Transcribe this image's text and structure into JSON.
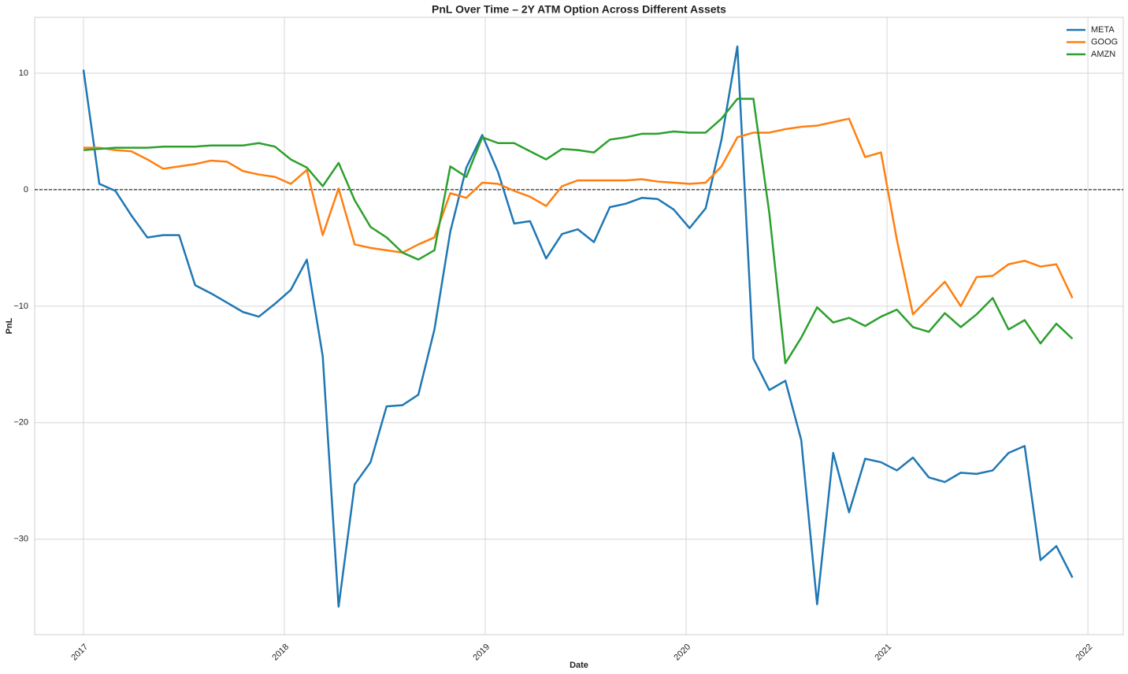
{
  "chart_data": {
    "type": "line",
    "title": "PnL Over Time – 2Y ATM Option Across Different Assets",
    "xlabel": "Date",
    "ylabel": "PnL",
    "x": [
      2017.0,
      2017.079,
      2017.159,
      2017.238,
      2017.318,
      2017.397,
      2017.476,
      2017.556,
      2017.635,
      2017.715,
      2017.794,
      2017.873,
      2017.953,
      2018.032,
      2018.112,
      2018.191,
      2018.27,
      2018.35,
      2018.429,
      2018.509,
      2018.588,
      2018.667,
      2018.747,
      2018.826,
      2018.906,
      2018.985,
      2019.064,
      2019.144,
      2019.223,
      2019.303,
      2019.382,
      2019.461,
      2019.541,
      2019.62,
      2019.7,
      2019.779,
      2019.858,
      2019.938,
      2020.017,
      2020.097,
      2020.176,
      2020.255,
      2020.335,
      2020.414,
      2020.494,
      2020.573,
      2020.652,
      2020.732,
      2020.811,
      2020.891,
      2020.97,
      2021.049,
      2021.129,
      2021.208,
      2021.288,
      2021.367,
      2021.446,
      2021.526,
      2021.605,
      2021.685,
      2021.764,
      2021.843,
      2021.923
    ],
    "series": [
      {
        "name": "META",
        "color": "#1f77b4",
        "values": [
          10.3,
          0.5,
          -0.1,
          -2.2,
          -4.1,
          -3.9,
          -3.9,
          -8.2,
          -8.9,
          -9.7,
          -10.5,
          -10.9,
          -9.8,
          -8.6,
          -6.0,
          -14.3,
          -35.8,
          -25.3,
          -23.4,
          -18.6,
          -18.5,
          -17.6,
          -12.0,
          -3.6,
          1.9,
          4.7,
          1.5,
          -2.9,
          -2.7,
          -5.9,
          -3.8,
          -3.4,
          -4.5,
          -1.5,
          -1.2,
          -0.7,
          -0.8,
          -1.7,
          -3.3,
          -1.6,
          4.3,
          12.3,
          -14.5,
          -17.2,
          -16.4,
          -21.5,
          -35.6,
          -22.6,
          -27.7,
          -23.1,
          -23.4,
          -24.1,
          -23.0,
          -24.7,
          -25.1,
          -24.3,
          -24.4,
          -24.1,
          -22.6,
          -22.0,
          -31.8,
          -30.6,
          -33.3
        ]
      },
      {
        "name": "GOOG",
        "color": "#ff7f0e",
        "values": [
          3.6,
          3.6,
          3.4,
          3.3,
          2.6,
          1.8,
          2.0,
          2.2,
          2.5,
          2.4,
          1.6,
          1.3,
          1.1,
          0.5,
          1.7,
          -3.9,
          0.1,
          -4.7,
          -5.0,
          -5.2,
          -5.4,
          -4.7,
          -4.1,
          -0.3,
          -0.7,
          0.6,
          0.5,
          -0.1,
          -0.6,
          -1.4,
          0.3,
          0.8,
          0.8,
          0.8,
          0.8,
          0.9,
          0.7,
          0.6,
          0.5,
          0.6,
          2.0,
          4.5,
          4.9,
          4.9,
          5.2,
          5.4,
          5.5,
          5.8,
          6.1,
          2.8,
          3.2,
          -4.3,
          -10.7,
          -9.3,
          -7.9,
          -10.0,
          -7.5,
          -7.4,
          -6.4,
          -6.1,
          -6.6,
          -6.4,
          -9.3
        ]
      },
      {
        "name": "AMZN",
        "color": "#2ca02c",
        "values": [
          3.4,
          3.5,
          3.6,
          3.6,
          3.6,
          3.7,
          3.7,
          3.7,
          3.8,
          3.8,
          3.8,
          4.0,
          3.7,
          2.6,
          1.9,
          0.3,
          2.3,
          -0.9,
          -3.2,
          -4.1,
          -5.4,
          -6.0,
          -5.2,
          2.0,
          1.1,
          4.5,
          4.0,
          4.0,
          3.3,
          2.6,
          3.5,
          3.4,
          3.2,
          4.3,
          4.5,
          4.8,
          4.8,
          5.0,
          4.9,
          4.9,
          6.1,
          7.8,
          7.8,
          -2.0,
          -14.9,
          -12.7,
          -10.1,
          -11.4,
          -11.0,
          -11.7,
          -10.9,
          -10.3,
          -11.8,
          -12.2,
          -10.6,
          -11.8,
          -10.7,
          -9.3,
          -12.0,
          -11.2,
          -13.2,
          -11.5,
          -12.8
        ]
      }
    ],
    "xlim": [
      2016.757,
      2022.176
    ],
    "xticks": [
      2017,
      2018,
      2019,
      2020,
      2021,
      2022
    ],
    "ylim": [
      -38.2,
      14.8
    ],
    "yticks": [
      {
        "value": -30,
        "label": "−30"
      },
      {
        "value": -20,
        "label": "−20"
      },
      {
        "value": -10,
        "label": "−10"
      },
      0,
      10
    ],
    "hline": 0,
    "grid": true,
    "legend": "upper right"
  }
}
